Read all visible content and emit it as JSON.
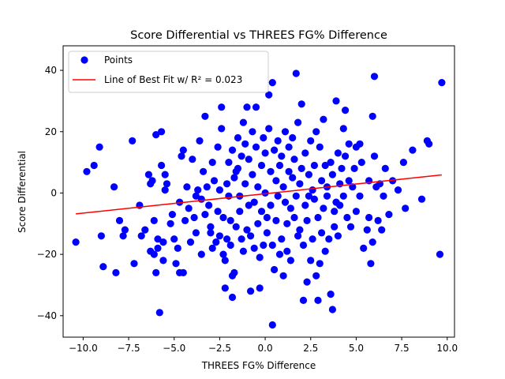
{
  "chart_data": {
    "type": "scatter",
    "title": "Score Differential vs THREES FG% Difference",
    "xlabel": "THREES FG% Difference",
    "ylabel": "Score Differential",
    "xlim": [
      -11.1,
      10.4
    ],
    "ylim": [
      -47,
      48
    ],
    "xticks": [
      -10.0,
      -7.5,
      -5.0,
      -2.5,
      0.0,
      2.5,
      5.0,
      7.5,
      10.0
    ],
    "xtick_labels": [
      "−10.0",
      "−7.5",
      "−5.0",
      "−2.5",
      "0.0",
      "2.5",
      "5.0",
      "7.5",
      "10.0"
    ],
    "yticks": [
      -40,
      -20,
      0,
      20,
      40
    ],
    "ytick_labels": [
      "−40",
      "−20",
      "0",
      "20",
      "40"
    ],
    "grid": false,
    "legend_position": "top-left",
    "series": [
      {
        "name": "Points",
        "kind": "scatter",
        "color": "#0000ff",
        "points": [
          [
            -10.4,
            -16
          ],
          [
            -9.8,
            7
          ],
          [
            -9.4,
            9
          ],
          [
            -9.1,
            15
          ],
          [
            -9.0,
            -14
          ],
          [
            -8.9,
            -24
          ],
          [
            -8.3,
            2
          ],
          [
            -8.2,
            -26
          ],
          [
            -8.0,
            -9
          ],
          [
            -7.8,
            -14
          ],
          [
            -7.7,
            -12
          ],
          [
            -7.3,
            17
          ],
          [
            -7.2,
            -23
          ],
          [
            -6.9,
            -4
          ],
          [
            -6.8,
            -14
          ],
          [
            -6.6,
            -12
          ],
          [
            -6.4,
            6
          ],
          [
            -6.3,
            3
          ],
          [
            -6.3,
            -19
          ],
          [
            -6.2,
            4
          ],
          [
            -6.1,
            -9
          ],
          [
            -6.1,
            -20
          ],
          [
            -6.0,
            -26
          ],
          [
            -6.0,
            19
          ],
          [
            -5.9,
            -15
          ],
          [
            -5.9,
            -18
          ],
          [
            -5.8,
            -39
          ],
          [
            -5.7,
            20
          ],
          [
            -5.7,
            9
          ],
          [
            -5.6,
            -16
          ],
          [
            -5.6,
            -22
          ],
          [
            -5.5,
            6
          ],
          [
            -5.5,
            1
          ],
          [
            -5.4,
            3
          ],
          [
            -5.2,
            -10
          ],
          [
            -5.1,
            -7
          ],
          [
            -5.0,
            -15
          ],
          [
            -4.9,
            -23
          ],
          [
            -4.8,
            -18
          ],
          [
            -4.7,
            -26
          ],
          [
            -4.7,
            -3
          ],
          [
            -4.5,
            -26
          ],
          [
            -4.6,
            12
          ],
          [
            -4.5,
            14
          ],
          [
            -4.4,
            -9
          ],
          [
            -4.3,
            2
          ],
          [
            -4.2,
            -5
          ],
          [
            -4.1,
            -16
          ],
          [
            -4.0,
            11
          ],
          [
            -3.9,
            -8
          ],
          [
            -3.8,
            -1
          ],
          [
            -3.8,
            -13
          ],
          [
            -3.7,
            1
          ],
          [
            -3.6,
            17
          ],
          [
            -3.5,
            -2
          ],
          [
            -3.5,
            -20
          ],
          [
            -3.4,
            7
          ],
          [
            -3.3,
            25
          ],
          [
            -3.3,
            -7
          ],
          [
            -3.2,
            2
          ],
          [
            -3.1,
            -4
          ],
          [
            -3.0,
            -11
          ],
          [
            -3.0,
            -13
          ],
          [
            -2.9,
            10
          ],
          [
            -2.9,
            -18
          ],
          [
            -2.8,
            4
          ],
          [
            -2.7,
            -16
          ],
          [
            -2.6,
            -6
          ],
          [
            -2.6,
            15
          ],
          [
            -2.5,
            1
          ],
          [
            -2.5,
            -14
          ],
          [
            -2.4,
            28
          ],
          [
            -2.4,
            21
          ],
          [
            -2.3,
            -20
          ],
          [
            -2.3,
            -8
          ],
          [
            -2.2,
            -22
          ],
          [
            -2.2,
            -31
          ],
          [
            -2.1,
            3
          ],
          [
            -2.1,
            -15
          ],
          [
            -2.0,
            -1
          ],
          [
            -2.0,
            10
          ],
          [
            -1.9,
            -9
          ],
          [
            -1.9,
            -17
          ],
          [
            -1.8,
            14
          ],
          [
            -1.8,
            -27
          ],
          [
            -1.8,
            -34
          ],
          [
            -1.7,
            5
          ],
          [
            -1.7,
            -26
          ],
          [
            -1.6,
            7
          ],
          [
            -1.6,
            -11
          ],
          [
            -1.5,
            8
          ],
          [
            -1.5,
            18
          ],
          [
            -1.4,
            -1
          ],
          [
            -1.4,
            -6
          ],
          [
            -1.3,
            12
          ],
          [
            -1.3,
            -15
          ],
          [
            -1.2,
            23
          ],
          [
            -1.2,
            -19
          ],
          [
            -1.1,
            3
          ],
          [
            -1.1,
            16
          ],
          [
            -1.0,
            -12
          ],
          [
            -1.0,
            28
          ],
          [
            -0.9,
            -4
          ],
          [
            -0.9,
            11
          ],
          [
            -0.8,
            -32
          ],
          [
            -0.8,
            -14
          ],
          [
            -0.7,
            20
          ],
          [
            -0.7,
            6
          ],
          [
            -0.6,
            -3
          ],
          [
            -0.6,
            -18
          ],
          [
            -0.5,
            15
          ],
          [
            -0.5,
            28
          ],
          [
            -0.4,
            -10
          ],
          [
            -0.4,
            2
          ],
          [
            -0.3,
            -21
          ],
          [
            -0.3,
            -31
          ],
          [
            -0.2,
            9
          ],
          [
            -0.2,
            -6
          ],
          [
            -0.1,
            18
          ],
          [
            -0.1,
            -17
          ],
          [
            0.0,
            0
          ],
          [
            0.0,
            13
          ],
          [
            0.1,
            -8
          ],
          [
            0.1,
            -13
          ],
          [
            0.2,
            21
          ],
          [
            0.2,
            32
          ],
          [
            0.3,
            -4
          ],
          [
            0.3,
            7
          ],
          [
            0.4,
            -17
          ],
          [
            0.4,
            36
          ],
          [
            0.4,
            -43
          ],
          [
            0.5,
            -25
          ],
          [
            0.5,
            14
          ],
          [
            0.6,
            4
          ],
          [
            0.6,
            -9
          ],
          [
            0.7,
            -1
          ],
          [
            0.7,
            17
          ],
          [
            0.8,
            -20
          ],
          [
            0.8,
            9
          ],
          [
            0.9,
            -15
          ],
          [
            0.9,
            12
          ],
          [
            1.0,
            -27
          ],
          [
            1.0,
            2
          ],
          [
            1.1,
            20
          ],
          [
            1.1,
            -3
          ],
          [
            1.2,
            -10
          ],
          [
            1.2,
            -19
          ],
          [
            1.3,
            7
          ],
          [
            1.3,
            15
          ],
          [
            1.4,
            -5
          ],
          [
            1.4,
            -22
          ],
          [
            1.5,
            18
          ],
          [
            1.5,
            5
          ],
          [
            1.6,
            -8
          ],
          [
            1.6,
            11
          ],
          [
            1.7,
            39
          ],
          [
            1.7,
            -1
          ],
          [
            1.8,
            -14
          ],
          [
            1.8,
            23
          ],
          [
            1.9,
            3
          ],
          [
            1.9,
            -12
          ],
          [
            2.0,
            29
          ],
          [
            2.0,
            8
          ],
          [
            2.1,
            -35
          ],
          [
            2.1,
            -17
          ],
          [
            2.2,
            13
          ],
          [
            2.2,
            -4
          ],
          [
            2.3,
            -9
          ],
          [
            2.3,
            -29
          ],
          [
            2.4,
            6
          ],
          [
            2.4,
            -1
          ],
          [
            2.5,
            -22
          ],
          [
            2.5,
            17
          ],
          [
            2.6,
            1
          ],
          [
            2.6,
            -15
          ],
          [
            2.7,
            9
          ],
          [
            2.7,
            -2
          ],
          [
            2.8,
            -27
          ],
          [
            2.8,
            20
          ],
          [
            2.9,
            -8
          ],
          [
            2.9,
            -35
          ],
          [
            3.0,
            15
          ],
          [
            3.0,
            -23
          ],
          [
            3.1,
            4
          ],
          [
            3.1,
            -13
          ],
          [
            3.2,
            24
          ],
          [
            3.2,
            -5
          ],
          [
            3.3,
            9
          ],
          [
            3.3,
            -19
          ],
          [
            3.4,
            -1
          ],
          [
            3.4,
            2
          ],
          [
            3.5,
            -15
          ],
          [
            3.6,
            -33
          ],
          [
            3.6,
            10
          ],
          [
            3.7,
            -38
          ],
          [
            3.7,
            6
          ],
          [
            3.8,
            -11
          ],
          [
            3.8,
            -6
          ],
          [
            3.9,
            30
          ],
          [
            3.9,
            -3
          ],
          [
            4.0,
            -14
          ],
          [
            4.0,
            13
          ],
          [
            4.1,
            3
          ],
          [
            4.1,
            -4
          ],
          [
            4.2,
            8
          ],
          [
            4.3,
            -1
          ],
          [
            4.3,
            21
          ],
          [
            4.4,
            27
          ],
          [
            4.4,
            12
          ],
          [
            4.5,
            -8
          ],
          [
            4.6,
            4
          ],
          [
            4.6,
            16
          ],
          [
            4.7,
            -11
          ],
          [
            4.8,
            2
          ],
          [
            4.9,
            8
          ],
          [
            5.0,
            -6
          ],
          [
            5.0,
            15
          ],
          [
            5.2,
            -1
          ],
          [
            5.2,
            16
          ],
          [
            5.3,
            10
          ],
          [
            5.4,
            -18
          ],
          [
            5.6,
            -12
          ],
          [
            5.7,
            -8
          ],
          [
            5.7,
            4
          ],
          [
            5.8,
            -23
          ],
          [
            5.9,
            -16
          ],
          [
            5.9,
            25
          ],
          [
            6.0,
            38
          ],
          [
            6.0,
            12
          ],
          [
            6.1,
            2
          ],
          [
            6.2,
            -9
          ],
          [
            6.3,
            3
          ],
          [
            6.4,
            -12
          ],
          [
            6.5,
            -1
          ],
          [
            6.6,
            8
          ],
          [
            6.8,
            -7
          ],
          [
            7.0,
            4
          ],
          [
            7.3,
            1
          ],
          [
            7.6,
            10
          ],
          [
            7.7,
            -5
          ],
          [
            8.1,
            14
          ],
          [
            8.6,
            -2
          ],
          [
            8.9,
            17
          ],
          [
            9.0,
            16
          ],
          [
            9.6,
            -20
          ],
          [
            9.7,
            36
          ]
        ]
      },
      {
        "name": "Line of Best Fit w/ R² = 0.023",
        "kind": "line",
        "color": "#ff0000",
        "points": [
          [
            -10.4,
            -6.8
          ],
          [
            9.7,
            5.9
          ]
        ]
      }
    ]
  }
}
